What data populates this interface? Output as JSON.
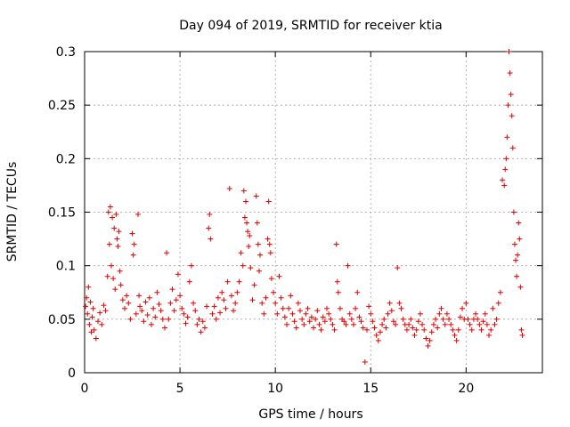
{
  "chart_data": {
    "type": "scatter",
    "title": "Day 094 of 2019, SRMTID for receiver ktia",
    "xlabel": "GPS time / hours",
    "ylabel": "SRMTID / TECUs",
    "xlim": [
      0,
      24
    ],
    "ylim": [
      0,
      0.3
    ],
    "x_ticks": [
      0,
      5,
      10,
      15,
      20
    ],
    "x_tick_labels": [
      "0",
      "5",
      "10",
      "15",
      "20"
    ],
    "y_ticks": [
      0,
      0.05,
      0.1,
      0.15,
      0.2,
      0.25,
      0.3
    ],
    "y_tick_labels": [
      "0",
      "0.05",
      "0.1",
      "0.15",
      "0.2",
      "0.25",
      "0.3"
    ],
    "grid": true,
    "marker": "plus",
    "series": [
      {
        "name": "SRMTID",
        "color": "#e00000",
        "points": [
          [
            0.05,
            0.062
          ],
          [
            0.1,
            0.07
          ],
          [
            0.15,
            0.055
          ],
          [
            0.2,
            0.08
          ],
          [
            0.25,
            0.045
          ],
          [
            0.3,
            0.066
          ],
          [
            0.35,
            0.038
          ],
          [
            0.4,
            0.052
          ],
          [
            0.45,
            0.06
          ],
          [
            0.5,
            0.04
          ],
          [
            0.6,
            0.032
          ],
          [
            0.7,
            0.048
          ],
          [
            0.8,
            0.056
          ],
          [
            0.9,
            0.045
          ],
          [
            1.0,
            0.063
          ],
          [
            1.1,
            0.058
          ],
          [
            1.2,
            0.09
          ],
          [
            1.25,
            0.15
          ],
          [
            1.3,
            0.12
          ],
          [
            1.35,
            0.155
          ],
          [
            1.4,
            0.1
          ],
          [
            1.45,
            0.145
          ],
          [
            1.5,
            0.088
          ],
          [
            1.55,
            0.135
          ],
          [
            1.6,
            0.078
          ],
          [
            1.65,
            0.148
          ],
          [
            1.7,
            0.125
          ],
          [
            1.75,
            0.118
          ],
          [
            1.8,
            0.132
          ],
          [
            1.85,
            0.095
          ],
          [
            1.9,
            0.082
          ],
          [
            2.0,
            0.068
          ],
          [
            2.1,
            0.06
          ],
          [
            2.2,
            0.072
          ],
          [
            2.3,
            0.065
          ],
          [
            2.4,
            0.05
          ],
          [
            2.5,
            0.13
          ],
          [
            2.55,
            0.11
          ],
          [
            2.6,
            0.12
          ],
          [
            2.7,
            0.055
          ],
          [
            2.8,
            0.148
          ],
          [
            2.85,
            0.072
          ],
          [
            2.9,
            0.062
          ],
          [
            3.0,
            0.058
          ],
          [
            3.1,
            0.048
          ],
          [
            3.2,
            0.066
          ],
          [
            3.3,
            0.054
          ],
          [
            3.4,
            0.07
          ],
          [
            3.5,
            0.045
          ],
          [
            3.6,
            0.06
          ],
          [
            3.7,
            0.052
          ],
          [
            3.8,
            0.075
          ],
          [
            3.9,
            0.064
          ],
          [
            4.0,
            0.058
          ],
          [
            4.1,
            0.05
          ],
          [
            4.2,
            0.042
          ],
          [
            4.3,
            0.112
          ],
          [
            4.4,
            0.05
          ],
          [
            4.5,
            0.065
          ],
          [
            4.6,
            0.078
          ],
          [
            4.7,
            0.058
          ],
          [
            4.8,
            0.068
          ],
          [
            4.9,
            0.092
          ],
          [
            5.0,
            0.072
          ],
          [
            5.1,
            0.06
          ],
          [
            5.2,
            0.055
          ],
          [
            5.3,
            0.046
          ],
          [
            5.4,
            0.052
          ],
          [
            5.5,
            0.085
          ],
          [
            5.6,
            0.1
          ],
          [
            5.7,
            0.065
          ],
          [
            5.8,
            0.058
          ],
          [
            5.9,
            0.045
          ],
          [
            6.0,
            0.05
          ],
          [
            6.1,
            0.038
          ],
          [
            6.2,
            0.048
          ],
          [
            6.3,
            0.042
          ],
          [
            6.4,
            0.062
          ],
          [
            6.5,
            0.135
          ],
          [
            6.55,
            0.148
          ],
          [
            6.6,
            0.125
          ],
          [
            6.7,
            0.055
          ],
          [
            6.8,
            0.062
          ],
          [
            6.9,
            0.05
          ],
          [
            7.0,
            0.07
          ],
          [
            7.1,
            0.056
          ],
          [
            7.2,
            0.075
          ],
          [
            7.3,
            0.068
          ],
          [
            7.4,
            0.06
          ],
          [
            7.5,
            0.085
          ],
          [
            7.6,
            0.172
          ],
          [
            7.7,
            0.072
          ],
          [
            7.8,
            0.058
          ],
          [
            7.9,
            0.065
          ],
          [
            8.0,
            0.075
          ],
          [
            8.1,
            0.085
          ],
          [
            8.2,
            0.112
          ],
          [
            8.3,
            0.1
          ],
          [
            8.35,
            0.17
          ],
          [
            8.4,
            0.145
          ],
          [
            8.45,
            0.16
          ],
          [
            8.5,
            0.14
          ],
          [
            8.55,
            0.132
          ],
          [
            8.6,
            0.118
          ],
          [
            8.65,
            0.128
          ],
          [
            8.7,
            0.098
          ],
          [
            8.8,
            0.068
          ],
          [
            8.9,
            0.082
          ],
          [
            9.0,
            0.165
          ],
          [
            9.05,
            0.14
          ],
          [
            9.1,
            0.12
          ],
          [
            9.15,
            0.095
          ],
          [
            9.2,
            0.11
          ],
          [
            9.3,
            0.065
          ],
          [
            9.4,
            0.055
          ],
          [
            9.5,
            0.07
          ],
          [
            9.6,
            0.125
          ],
          [
            9.65,
            0.16
          ],
          [
            9.7,
            0.12
          ],
          [
            9.75,
            0.112
          ],
          [
            9.8,
            0.088
          ],
          [
            9.9,
            0.075
          ],
          [
            10.0,
            0.065
          ],
          [
            10.1,
            0.055
          ],
          [
            10.2,
            0.09
          ],
          [
            10.3,
            0.07
          ],
          [
            10.4,
            0.06
          ],
          [
            10.5,
            0.052
          ],
          [
            10.6,
            0.045
          ],
          [
            10.7,
            0.06
          ],
          [
            10.8,
            0.072
          ],
          [
            10.9,
            0.055
          ],
          [
            11.0,
            0.048
          ],
          [
            11.1,
            0.042
          ],
          [
            11.2,
            0.065
          ],
          [
            11.3,
            0.058
          ],
          [
            11.4,
            0.05
          ],
          [
            11.5,
            0.045
          ],
          [
            11.6,
            0.055
          ],
          [
            11.7,
            0.06
          ],
          [
            11.8,
            0.048
          ],
          [
            11.9,
            0.052
          ],
          [
            12.0,
            0.042
          ],
          [
            12.1,
            0.05
          ],
          [
            12.2,
            0.058
          ],
          [
            12.3,
            0.045
          ],
          [
            12.4,
            0.04
          ],
          [
            12.5,
            0.052
          ],
          [
            12.6,
            0.048
          ],
          [
            12.7,
            0.06
          ],
          [
            12.8,
            0.055
          ],
          [
            12.9,
            0.05
          ],
          [
            13.0,
            0.045
          ],
          [
            13.1,
            0.04
          ],
          [
            13.2,
            0.12
          ],
          [
            13.25,
            0.085
          ],
          [
            13.3,
            0.075
          ],
          [
            13.4,
            0.06
          ],
          [
            13.5,
            0.05
          ],
          [
            13.6,
            0.048
          ],
          [
            13.7,
            0.045
          ],
          [
            13.8,
            0.1
          ],
          [
            13.9,
            0.055
          ],
          [
            14.0,
            0.05
          ],
          [
            14.1,
            0.045
          ],
          [
            14.2,
            0.06
          ],
          [
            14.3,
            0.075
          ],
          [
            14.4,
            0.052
          ],
          [
            14.5,
            0.048
          ],
          [
            14.6,
            0.042
          ],
          [
            14.7,
            0.01
          ],
          [
            14.8,
            0.04
          ],
          [
            14.9,
            0.062
          ],
          [
            15.0,
            0.055
          ],
          [
            15.1,
            0.048
          ],
          [
            15.2,
            0.042
          ],
          [
            15.3,
            0.035
          ],
          [
            15.4,
            0.03
          ],
          [
            15.5,
            0.038
          ],
          [
            15.6,
            0.045
          ],
          [
            15.7,
            0.05
          ],
          [
            15.8,
            0.042
          ],
          [
            15.9,
            0.055
          ],
          [
            16.0,
            0.065
          ],
          [
            16.1,
            0.058
          ],
          [
            16.2,
            0.048
          ],
          [
            16.3,
            0.045
          ],
          [
            16.4,
            0.098
          ],
          [
            16.5,
            0.065
          ],
          [
            16.6,
            0.06
          ],
          [
            16.7,
            0.05
          ],
          [
            16.8,
            0.045
          ],
          [
            16.9,
            0.04
          ],
          [
            17.0,
            0.045
          ],
          [
            17.1,
            0.05
          ],
          [
            17.2,
            0.042
          ],
          [
            17.3,
            0.035
          ],
          [
            17.4,
            0.04
          ],
          [
            17.5,
            0.048
          ],
          [
            17.6,
            0.055
          ],
          [
            17.7,
            0.045
          ],
          [
            17.8,
            0.04
          ],
          [
            17.9,
            0.032
          ],
          [
            18.0,
            0.025
          ],
          [
            18.1,
            0.03
          ],
          [
            18.2,
            0.038
          ],
          [
            18.3,
            0.045
          ],
          [
            18.4,
            0.05
          ],
          [
            18.5,
            0.042
          ],
          [
            18.6,
            0.055
          ],
          [
            18.7,
            0.06
          ],
          [
            18.8,
            0.05
          ],
          [
            18.9,
            0.045
          ],
          [
            19.0,
            0.055
          ],
          [
            19.1,
            0.05
          ],
          [
            19.2,
            0.045
          ],
          [
            19.3,
            0.04
          ],
          [
            19.4,
            0.035
          ],
          [
            19.5,
            0.03
          ],
          [
            19.6,
            0.04
          ],
          [
            19.7,
            0.052
          ],
          [
            19.8,
            0.06
          ],
          [
            19.9,
            0.05
          ],
          [
            20.0,
            0.065
          ],
          [
            20.1,
            0.05
          ],
          [
            20.2,
            0.045
          ],
          [
            20.3,
            0.04
          ],
          [
            20.4,
            0.05
          ],
          [
            20.5,
            0.055
          ],
          [
            20.6,
            0.05
          ],
          [
            20.7,
            0.045
          ],
          [
            20.8,
            0.04
          ],
          [
            20.9,
            0.048
          ],
          [
            21.0,
            0.055
          ],
          [
            21.1,
            0.045
          ],
          [
            21.2,
            0.035
          ],
          [
            21.3,
            0.04
          ],
          [
            21.4,
            0.06
          ],
          [
            21.5,
            0.045
          ],
          [
            21.6,
            0.05
          ],
          [
            21.7,
            0.065
          ],
          [
            21.8,
            0.075
          ],
          [
            21.9,
            0.18
          ],
          [
            22.0,
            0.175
          ],
          [
            22.05,
            0.19
          ],
          [
            22.1,
            0.2
          ],
          [
            22.15,
            0.22
          ],
          [
            22.2,
            0.25
          ],
          [
            22.25,
            0.3
          ],
          [
            22.3,
            0.28
          ],
          [
            22.35,
            0.26
          ],
          [
            22.4,
            0.24
          ],
          [
            22.45,
            0.21
          ],
          [
            22.5,
            0.15
          ],
          [
            22.55,
            0.12
          ],
          [
            22.6,
            0.105
          ],
          [
            22.65,
            0.09
          ],
          [
            22.7,
            0.11
          ],
          [
            22.75,
            0.14
          ],
          [
            22.8,
            0.125
          ],
          [
            22.85,
            0.08
          ],
          [
            22.9,
            0.04
          ],
          [
            22.95,
            0.035
          ]
        ]
      }
    ]
  }
}
